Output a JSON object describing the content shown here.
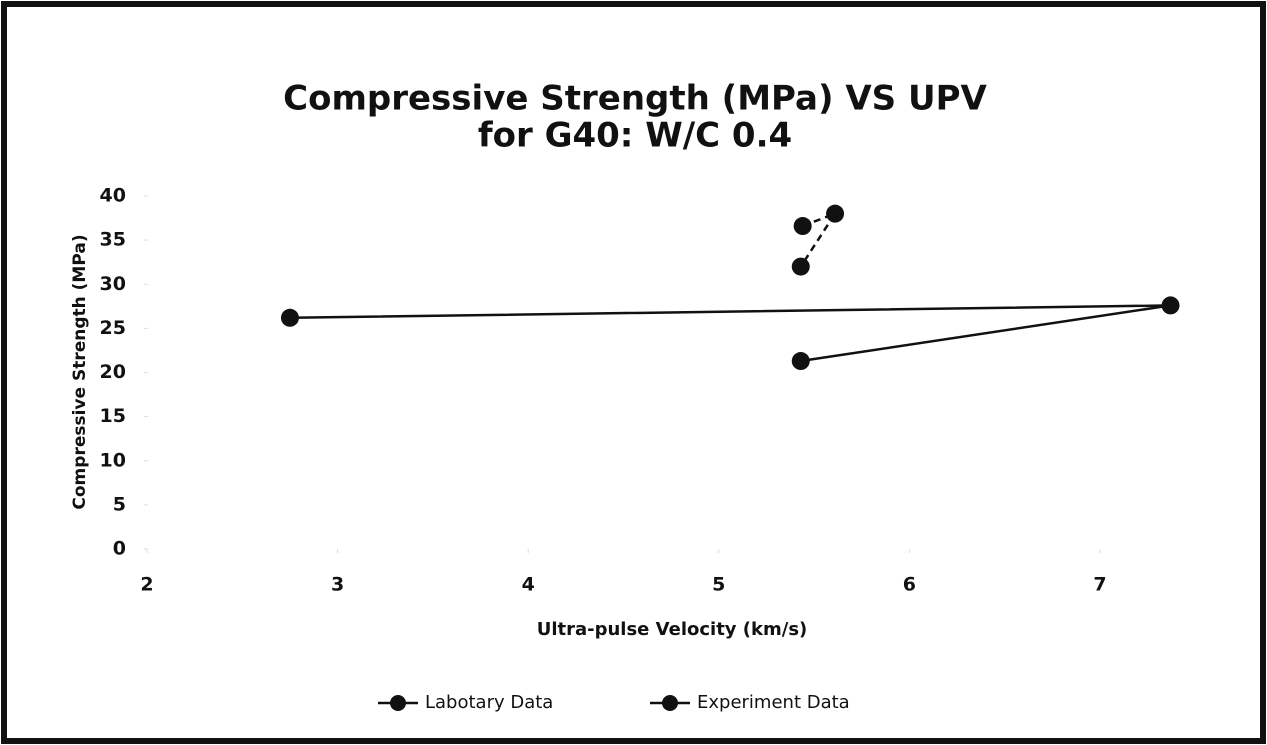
{
  "chart_data": {
    "type": "line",
    "title": "Compressive Strength (MPa) VS UPV",
    "subtitle": "for G40: W/C 0.4",
    "x_label": "Ultra-pulse Velocity (km/s)",
    "y_label": "Compressive Strength (MPa)",
    "xlim": [
      2,
      7.5
    ],
    "xticks": [
      2,
      3,
      4,
      5,
      6,
      7
    ],
    "ylim": [
      0,
      40
    ],
    "yticks": [
      0,
      5,
      10,
      15,
      20,
      25,
      30,
      35,
      40
    ],
    "legend": "bottom",
    "series": [
      {
        "name": "Labotary Data",
        "color": "#111111",
        "dashed": true,
        "x": [
          5.44,
          5.61,
          5.43
        ],
        "values": [
          36.6,
          38,
          32
        ]
      },
      {
        "name": "Experiment Data",
        "color": "#111111",
        "dashed": false,
        "x": [
          5.43,
          7.37,
          2.75
        ],
        "values": [
          21.3,
          27.6,
          26.2
        ]
      }
    ]
  }
}
